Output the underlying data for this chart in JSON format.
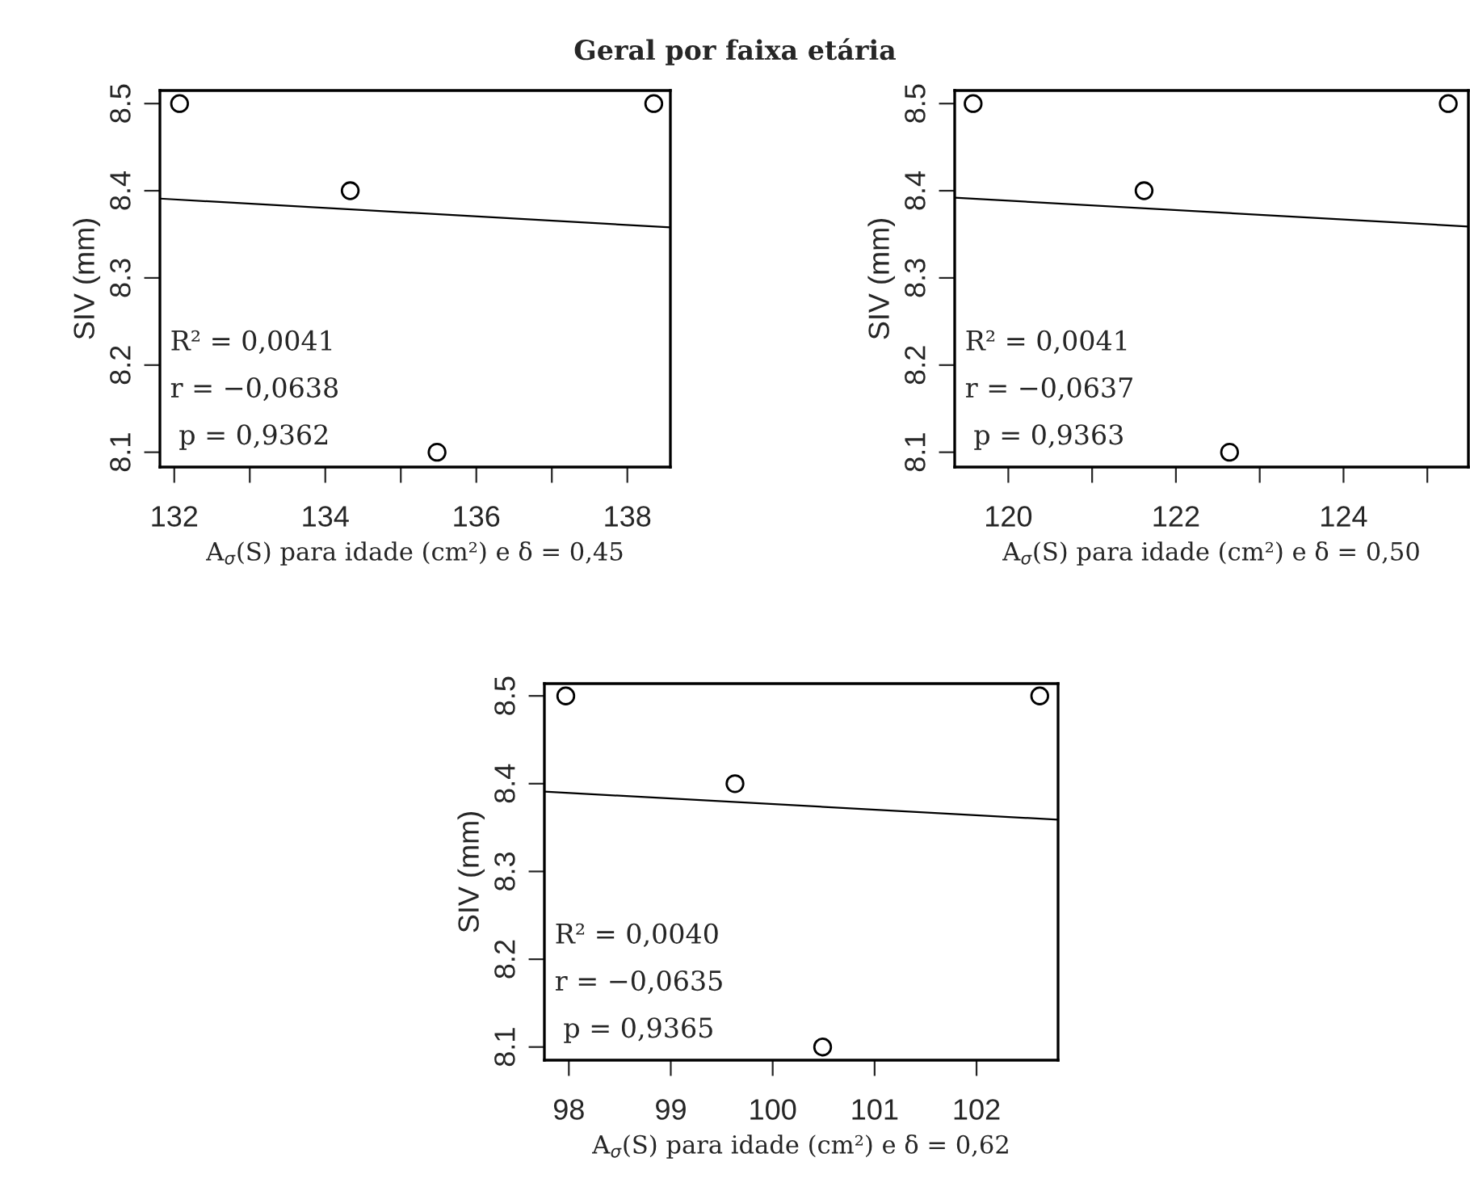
{
  "chart_data": [
    {
      "type": "scatter",
      "title": "Geral por faixa etária",
      "xlabel": "A$_{σ}$(S) para idade (cm²) e δ = 0,45",
      "ylabel": "SIV (mm)",
      "marker": "circle",
      "grid": false,
      "legend": false,
      "xlim": [
        131.81,
        138.57
      ],
      "xticks": [
        132,
        {
          "value": 133,
          "label": null
        },
        134,
        {
          "value": 135,
          "label": null
        },
        136,
        {
          "value": 137,
          "label": null
        },
        138
      ],
      "ylim": [
        8.083,
        8.515
      ],
      "yticks": [
        8.1,
        8.2,
        8.3,
        8.4,
        8.5
      ],
      "series": [
        {
          "color": "#000000",
          "x": [
            132.07,
            134.33,
            135.48,
            138.35
          ],
          "values": [
            8.5,
            8.4,
            8.1,
            8.5
          ]
        },
        {
          "type": "line",
          "color": "#000000",
          "marker": "none",
          "x": [
            131.81,
            138.57
          ],
          "values": [
            8.391,
            8.358
          ]
        }
      ],
      "annotations": [
        "R² = 0,0041",
        "r = −0,0638",
        " p = 0,9362"
      ]
    },
    {
      "type": "scatter",
      "xlabel": "A$_{σ}$(S) para idade (cm²) e δ = 0,50",
      "ylabel": "SIV (mm)",
      "marker": "circle",
      "grid": false,
      "legend": false,
      "xlim": [
        119.36,
        125.49
      ],
      "xticks": [
        120,
        {
          "value": 121,
          "label": null
        },
        122,
        {
          "value": 123,
          "label": null
        },
        124,
        {
          "value": 125,
          "label": null
        }
      ],
      "ylim": [
        8.083,
        8.515
      ],
      "yticks": [
        8.1,
        8.2,
        8.3,
        8.4,
        8.5
      ],
      "series": [
        {
          "color": "#000000",
          "x": [
            119.58,
            121.62,
            122.64,
            125.25
          ],
          "values": [
            8.5,
            8.4,
            8.1,
            8.5
          ]
        },
        {
          "type": "line",
          "color": "#000000",
          "marker": "none",
          "x": [
            119.36,
            125.49
          ],
          "values": [
            8.392,
            8.359
          ]
        }
      ],
      "annotations": [
        "R² = 0,0041",
        "r = −0,0637",
        " p = 0,9363"
      ]
    },
    {
      "type": "scatter",
      "xlabel": "A$_{σ}$(S) para idade (cm²) e δ = 0,62",
      "ylabel": "SIV (mm)",
      "marker": "circle",
      "grid": false,
      "legend": false,
      "xlim": [
        97.76,
        102.8
      ],
      "xticks": [
        98,
        99,
        100,
        101,
        102
      ],
      "ylim": [
        8.085,
        8.514
      ],
      "yticks": [
        8.1,
        8.2,
        8.3,
        8.4,
        8.5
      ],
      "series": [
        {
          "color": "#000000",
          "x": [
            97.97,
            99.63,
            100.49,
            102.62
          ],
          "values": [
            8.5,
            8.4,
            8.1,
            8.5
          ]
        },
        {
          "type": "line",
          "color": "#000000",
          "marker": "none",
          "x": [
            97.76,
            102.8
          ],
          "values": [
            8.391,
            8.359
          ]
        }
      ],
      "annotations": [
        "R² = 0,0040",
        "r = −0,0635",
        " p = 0,9365"
      ]
    }
  ]
}
